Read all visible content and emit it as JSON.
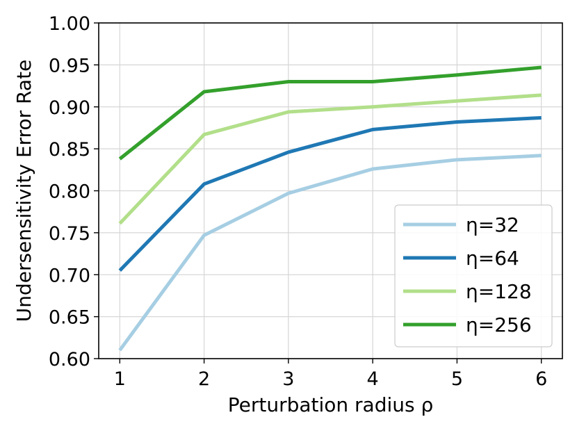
{
  "chart_data": {
    "type": "line",
    "title": "",
    "xlabel": "Perturbation radius ρ",
    "ylabel": "Undersensitivity Error Rate",
    "x": [
      1,
      2,
      3,
      4,
      5,
      6
    ],
    "xticks": [
      "1",
      "2",
      "3",
      "4",
      "5",
      "6"
    ],
    "yticks": [
      "0.60",
      "0.65",
      "0.70",
      "0.75",
      "0.80",
      "0.85",
      "0.90",
      "0.95",
      "1.00"
    ],
    "xlim": [
      0.75,
      6.25
    ],
    "ylim": [
      0.6,
      1.0
    ],
    "grid": true,
    "legend": "lower-right",
    "series": [
      {
        "name": "η=32",
        "color": "#a6cee3",
        "values": [
          0.61,
          0.747,
          0.797,
          0.826,
          0.837,
          0.842
        ]
      },
      {
        "name": "η=64",
        "color": "#1f78b4",
        "values": [
          0.705,
          0.808,
          0.846,
          0.873,
          0.882,
          0.887
        ]
      },
      {
        "name": "η=128",
        "color": "#b2df8a",
        "values": [
          0.761,
          0.867,
          0.894,
          0.9,
          0.907,
          0.914
        ]
      },
      {
        "name": "η=256",
        "color": "#33a02c",
        "values": [
          0.838,
          0.918,
          0.93,
          0.93,
          0.938,
          0.947
        ]
      }
    ]
  }
}
